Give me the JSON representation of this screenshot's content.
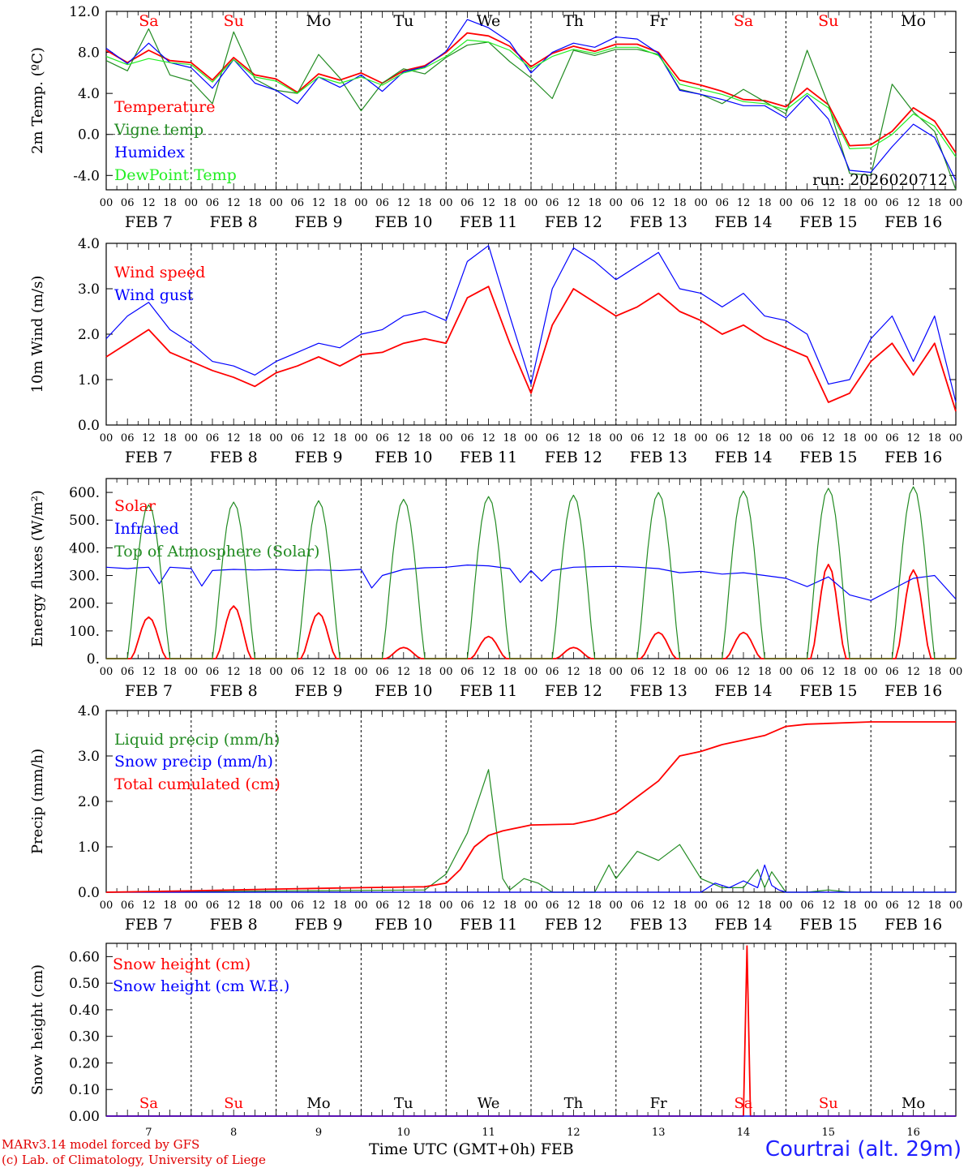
{
  "footer": {
    "model_line": "MARv3.14 model forced by GFS",
    "lab_line": "(c) Lab. of Climatology, University of Liege",
    "station": "Courtrai (alt. 29m)",
    "time_axis_label": "Time UTC (GMT+0h) FEB"
  },
  "colors": {
    "red": "#ff0000",
    "green": "#228b22",
    "blue": "#0000ff",
    "lightgreen": "#22ee22",
    "black": "#000000"
  },
  "chart_data": [
    {
      "type": "line",
      "title": "2m Temp.",
      "ylabel": "2m Temp. (ºC)",
      "ylim": [
        -5.4,
        12.0
      ],
      "yticks": [
        -4.0,
        0.0,
        4.0,
        8.0,
        12.0
      ],
      "ytick_labels": [
        "-4.0",
        "0.0",
        "4.0",
        "8.0",
        "12.0"
      ],
      "zero_line": true,
      "annotation": "run: 2026020712",
      "day_names": [
        "Sa",
        "Su",
        "Mo",
        "Tu",
        "We",
        "Th",
        "Fr",
        "Sa",
        "Su",
        "Mo"
      ],
      "hour_ticks": [
        "00",
        "06",
        "12",
        "18"
      ],
      "date_labels": [
        "FEB  7",
        "FEB  8",
        "FEB  9",
        "FEB 10",
        "FEB 11",
        "FEB 12",
        "FEB 13",
        "FEB 14",
        "FEB 15",
        "FEB 16"
      ],
      "x_unit": "hours since FEB 7 00 UTC",
      "xlim": [
        0,
        240
      ],
      "series": [
        {
          "name": "Temperature",
          "color": "red",
          "x": [
            0,
            6,
            12,
            18,
            24,
            30,
            36,
            42,
            48,
            54,
            60,
            66,
            72,
            78,
            84,
            90,
            96,
            102,
            108,
            114,
            120,
            126,
            132,
            138,
            144,
            150,
            156,
            162,
            168,
            174,
            180,
            186,
            192,
            198,
            204,
            210,
            216,
            222,
            228,
            234,
            240
          ],
          "y": [
            8.2,
            7.0,
            8.2,
            7.2,
            7.0,
            5.3,
            7.5,
            5.8,
            5.4,
            4.1,
            5.9,
            5.3,
            6.0,
            5.0,
            6.2,
            6.7,
            8.0,
            9.9,
            9.6,
            8.6,
            6.6,
            7.9,
            8.6,
            8.1,
            8.8,
            8.8,
            8.0,
            5.3,
            4.8,
            4.2,
            3.4,
            3.3,
            2.7,
            4.5,
            2.9,
            -1.1,
            -1.0,
            0.3,
            2.6,
            1.3,
            -1.8
          ]
        },
        {
          "name": "Vigne temp",
          "color": "green",
          "x": [
            0,
            6,
            12,
            18,
            24,
            30,
            36,
            42,
            48,
            54,
            60,
            66,
            72,
            78,
            84,
            90,
            96,
            102,
            108,
            114,
            120,
            126,
            132,
            138,
            144,
            150,
            156,
            162,
            168,
            174,
            180,
            186,
            192,
            198,
            204,
            210,
            216,
            222,
            228,
            234,
            240
          ],
          "y": [
            7.2,
            6.2,
            10.3,
            5.8,
            5.2,
            3.0,
            10.0,
            5.4,
            4.3,
            4.0,
            7.8,
            5.5,
            2.3,
            5.0,
            6.4,
            5.9,
            7.5,
            8.7,
            9.0,
            7.1,
            5.5,
            3.5,
            8.2,
            7.7,
            8.3,
            8.3,
            7.8,
            4.4,
            3.9,
            3.0,
            4.4,
            3.2,
            2.0,
            8.2,
            2.9,
            -3.8,
            -4.0,
            4.9,
            2.2,
            0.3,
            -5.4
          ]
        },
        {
          "name": "Humidex",
          "color": "blue",
          "x": [
            0,
            6,
            12,
            18,
            24,
            30,
            36,
            42,
            48,
            54,
            60,
            66,
            72,
            78,
            84,
            90,
            96,
            102,
            108,
            114,
            120,
            126,
            132,
            138,
            144,
            150,
            156,
            162,
            168,
            174,
            180,
            186,
            192,
            198,
            204,
            210,
            216,
            222,
            228,
            234,
            240
          ],
          "y": [
            8.4,
            6.9,
            8.9,
            7.0,
            6.5,
            4.5,
            7.3,
            5.0,
            4.3,
            3.0,
            5.6,
            4.6,
            5.8,
            4.2,
            6.1,
            6.6,
            8.1,
            11.2,
            10.4,
            9.0,
            6.0,
            8.0,
            8.9,
            8.5,
            9.5,
            9.3,
            7.9,
            4.3,
            3.9,
            3.4,
            2.8,
            2.8,
            1.6,
            3.8,
            1.5,
            -3.5,
            -3.7,
            -1.2,
            1.0,
            -0.3,
            -4.5
          ]
        },
        {
          "name": "DewPoint Temp",
          "color": "lightgreen",
          "x": [
            0,
            6,
            12,
            18,
            24,
            30,
            36,
            42,
            48,
            54,
            60,
            66,
            72,
            78,
            84,
            90,
            96,
            102,
            108,
            114,
            120,
            126,
            132,
            138,
            144,
            150,
            156,
            162,
            168,
            174,
            180,
            186,
            192,
            198,
            204,
            210,
            216,
            222,
            228,
            234,
            240
          ],
          "y": [
            7.6,
            6.8,
            7.4,
            7.0,
            6.8,
            5.1,
            7.3,
            5.6,
            5.2,
            4.0,
            5.6,
            5.0,
            5.6,
            4.8,
            6.0,
            6.5,
            7.6,
            9.2,
            9.0,
            8.2,
            6.4,
            7.6,
            8.3,
            7.9,
            8.5,
            8.5,
            7.7,
            4.9,
            4.4,
            3.9,
            3.2,
            3.0,
            2.4,
            4.0,
            2.6,
            -1.4,
            -1.3,
            0.0,
            2.0,
            0.8,
            -2.2
          ]
        }
      ]
    },
    {
      "type": "line",
      "title": "10m Wind",
      "ylabel": "10m Wind (m/s)",
      "ylim": [
        0.0,
        4.0
      ],
      "yticks": [
        0.0,
        1.0,
        2.0,
        3.0,
        4.0
      ],
      "ytick_labels": [
        "0.0",
        "1.0",
        "2.0",
        "3.0",
        "4.0"
      ],
      "hour_ticks": [
        "00",
        "06",
        "12",
        "18"
      ],
      "date_labels": [
        "FEB  7",
        "FEB  8",
        "FEB  9",
        "FEB 10",
        "FEB 11",
        "FEB 12",
        "FEB 13",
        "FEB 14",
        "FEB 15",
        "FEB 16"
      ],
      "xlim": [
        0,
        240
      ],
      "series": [
        {
          "name": "Wind speed",
          "color": "red",
          "x": [
            0,
            6,
            12,
            18,
            24,
            30,
            36,
            42,
            48,
            54,
            60,
            66,
            72,
            78,
            84,
            90,
            96,
            102,
            108,
            114,
            120,
            126,
            132,
            138,
            144,
            150,
            156,
            162,
            168,
            174,
            180,
            186,
            192,
            198,
            204,
            210,
            216,
            222,
            228,
            234,
            240
          ],
          "y": [
            1.5,
            1.8,
            2.1,
            1.6,
            1.4,
            1.2,
            1.05,
            0.85,
            1.15,
            1.3,
            1.5,
            1.3,
            1.55,
            1.6,
            1.8,
            1.9,
            1.8,
            2.8,
            3.05,
            1.8,
            0.7,
            2.2,
            3.0,
            2.7,
            2.4,
            2.6,
            2.9,
            2.5,
            2.3,
            2.0,
            2.2,
            1.9,
            1.7,
            1.5,
            0.5,
            0.7,
            1.4,
            1.8,
            1.1,
            1.8,
            0.3
          ]
        },
        {
          "name": "Wind gust",
          "color": "blue",
          "x": [
            0,
            6,
            12,
            18,
            24,
            30,
            36,
            42,
            48,
            54,
            60,
            66,
            72,
            78,
            84,
            90,
            96,
            102,
            108,
            114,
            120,
            126,
            132,
            138,
            144,
            150,
            156,
            162,
            168,
            174,
            180,
            186,
            192,
            198,
            204,
            210,
            216,
            222,
            228,
            234,
            240
          ],
          "y": [
            1.9,
            2.4,
            2.7,
            2.1,
            1.8,
            1.4,
            1.3,
            1.1,
            1.4,
            1.6,
            1.8,
            1.7,
            2.0,
            2.1,
            2.4,
            2.5,
            2.3,
            3.6,
            3.95,
            2.4,
            0.9,
            3.0,
            3.9,
            3.6,
            3.2,
            3.5,
            3.8,
            3.0,
            2.9,
            2.6,
            2.9,
            2.4,
            2.3,
            2.0,
            0.9,
            1.0,
            1.9,
            2.4,
            1.4,
            2.4,
            0.5
          ]
        }
      ]
    },
    {
      "type": "line",
      "title": "Energy fluxes",
      "ylabel": "Energy fluxes (W/m²)",
      "ylim": [
        0,
        650
      ],
      "yticks": [
        0,
        100,
        200,
        300,
        400,
        500,
        600
      ],
      "ytick_labels": [
        "0.",
        "100.",
        "200.",
        "300.",
        "400.",
        "500.",
        "600."
      ],
      "hour_ticks": [
        "00",
        "06",
        "12",
        "18"
      ],
      "date_labels": [
        "FEB  7",
        "FEB  8",
        "FEB  9",
        "FEB 10",
        "FEB 11",
        "FEB 12",
        "FEB 13",
        "FEB 14",
        "FEB 15",
        "FEB 16"
      ],
      "xlim": [
        0,
        240
      ],
      "daily_peaks": {
        "toa_solar_peak": [
          555,
          565,
          570,
          575,
          585,
          590,
          600,
          605,
          615,
          620
        ],
        "solar_peak": [
          150,
          190,
          165,
          40,
          80,
          40,
          95,
          95,
          340,
          320
        ]
      },
      "series": [
        {
          "name": "Solar",
          "color": "red",
          "derived_from": "daily_peaks.solar_peak"
        },
        {
          "name": "Infrared",
          "color": "blue",
          "x": [
            0,
            6,
            9,
            12,
            15,
            18,
            24,
            27,
            30,
            36,
            42,
            48,
            54,
            60,
            66,
            72,
            75,
            78,
            84,
            90,
            96,
            102,
            108,
            114,
            117,
            120,
            123,
            126,
            132,
            138,
            144,
            150,
            156,
            162,
            168,
            174,
            180,
            186,
            192,
            198,
            204,
            210,
            216,
            222,
            228,
            234,
            240
          ],
          "y": [
            330,
            325,
            328,
            330,
            270,
            330,
            325,
            262,
            318,
            322,
            320,
            322,
            318,
            320,
            318,
            322,
            255,
            300,
            322,
            328,
            330,
            338,
            335,
            325,
            275,
            318,
            280,
            318,
            330,
            332,
            333,
            330,
            325,
            310,
            315,
            305,
            310,
            300,
            290,
            260,
            295,
            230,
            210,
            250,
            290,
            300,
            215
          ]
        },
        {
          "name": "Top of Atmosphere (Solar)",
          "color": "green",
          "derived_from": "daily_peaks.toa_solar_peak"
        }
      ]
    },
    {
      "type": "line",
      "title": "Precip",
      "ylabel": "Precip (mm/h)",
      "ylim": [
        0.0,
        4.0
      ],
      "yticks": [
        0.0,
        1.0,
        2.0,
        3.0,
        4.0
      ],
      "ytick_labels": [
        "0.0",
        "1.0",
        "2.0",
        "3.0",
        "4.0"
      ],
      "hour_ticks": [
        "00",
        "06",
        "12",
        "18"
      ],
      "date_labels": [
        "FEB  7",
        "FEB  8",
        "FEB  9",
        "FEB 10",
        "FEB 11",
        "FEB 12",
        "FEB 13",
        "FEB 14",
        "FEB 15",
        "FEB 16"
      ],
      "xlim": [
        0,
        240
      ],
      "series": [
        {
          "name": "Liquid precip (mm/h)",
          "color": "green",
          "x": [
            0,
            90,
            96,
            102,
            108,
            110,
            112,
            114,
            118,
            122,
            126,
            132,
            138,
            142,
            144,
            150,
            156,
            162,
            168,
            174,
            180,
            184,
            186,
            188,
            192,
            198,
            204,
            210,
            240
          ],
          "y": [
            0.0,
            0.05,
            0.4,
            1.3,
            2.7,
            1.5,
            0.3,
            0.05,
            0.3,
            0.2,
            0.0,
            0.0,
            0.0,
            0.6,
            0.3,
            0.9,
            0.7,
            1.05,
            0.3,
            0.1,
            0.1,
            0.5,
            0.1,
            0.45,
            0.0,
            0.0,
            0.05,
            0.0,
            0.0
          ]
        },
        {
          "name": "Snow precip (mm/h)",
          "color": "blue",
          "x": [
            0,
            168,
            172,
            176,
            180,
            184,
            186,
            188,
            190,
            192,
            240
          ],
          "y": [
            0.0,
            0.0,
            0.2,
            0.1,
            0.25,
            0.1,
            0.6,
            0.15,
            0.05,
            0.0,
            0.0
          ]
        },
        {
          "name": "Total cumulated (cm)",
          "color": "red",
          "x": [
            0,
            24,
            48,
            72,
            90,
            96,
            100,
            104,
            108,
            112,
            120,
            132,
            138,
            144,
            150,
            156,
            162,
            168,
            174,
            180,
            186,
            192,
            198,
            216,
            240
          ],
          "y": [
            0.0,
            0.03,
            0.07,
            0.1,
            0.12,
            0.2,
            0.5,
            1.0,
            1.25,
            1.35,
            1.48,
            1.5,
            1.6,
            1.75,
            2.1,
            2.45,
            3.0,
            3.1,
            3.25,
            3.35,
            3.45,
            3.65,
            3.7,
            3.75,
            3.75
          ]
        }
      ]
    },
    {
      "type": "line",
      "title": "Snow height",
      "ylabel": "Snow height (cm)",
      "ylim": [
        0.0,
        0.65
      ],
      "yticks": [
        0.0,
        0.1,
        0.2,
        0.3,
        0.4,
        0.5,
        0.6
      ],
      "ytick_labels": [
        "0.00",
        "0.10",
        "0.20",
        "0.30",
        "0.40",
        "0.50",
        "0.60"
      ],
      "day_names": [
        "Sa",
        "Su",
        "Mo",
        "Tu",
        "We",
        "Th",
        "Fr",
        "Sa",
        "Su",
        "Mo"
      ],
      "day_numbers": [
        "7",
        "8",
        "9",
        "10",
        "11",
        "12",
        "13",
        "14",
        "15",
        "16"
      ],
      "xlim": [
        0,
        240
      ],
      "series": [
        {
          "name": "Snow height (cm)",
          "color": "red",
          "x": [
            0,
            180,
            181,
            182,
            183,
            240
          ],
          "y": [
            0.0,
            0.0,
            0.64,
            0.0,
            0.0,
            0.0
          ]
        },
        {
          "name": "Snow height (cm W.E.)",
          "color": "blue",
          "x": [
            0,
            240
          ],
          "y": [
            0.0,
            0.0
          ]
        }
      ]
    }
  ]
}
